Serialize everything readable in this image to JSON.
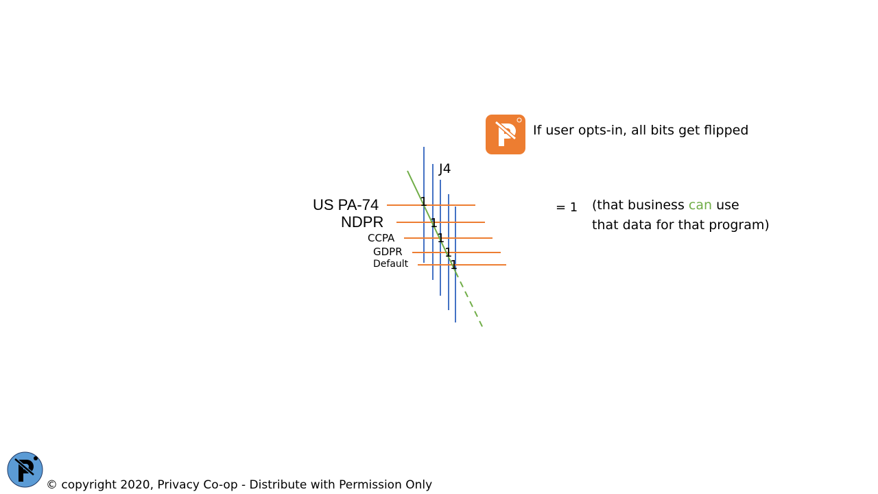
{
  "notice": {
    "text": "If user opts-in, all bits get flipped"
  },
  "column_label": "J4",
  "rows": [
    {
      "label": "US PA-74",
      "bit": "1"
    },
    {
      "label": "NDPR",
      "bit": "1"
    },
    {
      "label": "CCPA",
      "bit": "1"
    },
    {
      "label": "GDPR",
      "bit": "1"
    },
    {
      "label": "Default",
      "bit": "1"
    }
  ],
  "equation": "= 1",
  "explanation": {
    "before": "(that business ",
    "highlight": "can",
    "after": " use",
    "line2": "that data for that program)"
  },
  "footer": {
    "copyright": "© copyright 2020, Privacy Co-op - Distribute with Permission Only"
  },
  "colors": {
    "vertical": "#4472c4",
    "horizontal": "#ed7d31",
    "diagonal": "#70ad47",
    "brand_orange": "#ed7d31",
    "brand_blue": "#5b9bd5"
  },
  "icons": {
    "notice": "privacy-coop-logo-icon",
    "footer": "privacy-coop-logo-icon"
  }
}
